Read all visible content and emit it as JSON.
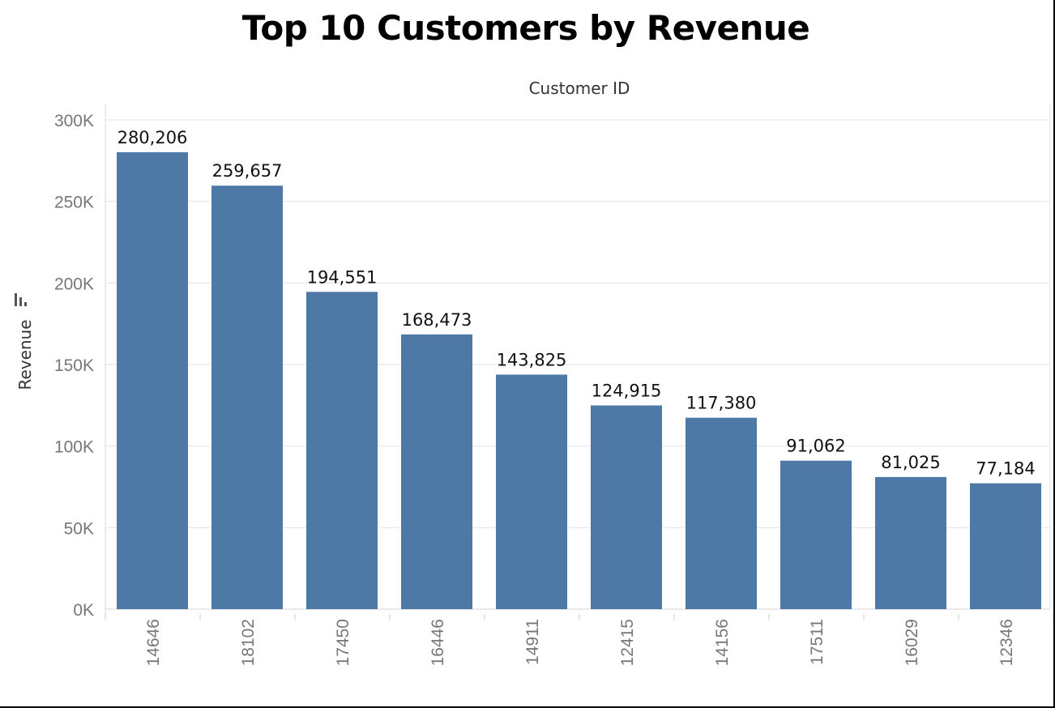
{
  "chart_data": {
    "type": "bar",
    "title": "Top 10 Customers by Revenue",
    "xlabel": "Customer ID",
    "ylabel": "Revenue",
    "categories": [
      "14646",
      "18102",
      "17450",
      "16446",
      "14911",
      "12415",
      "14156",
      "17511",
      "16029",
      "12346"
    ],
    "values": [
      280206,
      259657,
      194551,
      168473,
      143825,
      124915,
      117380,
      91062,
      81025,
      77184
    ],
    "data_labels": [
      "280,206",
      "259,657",
      "194,551",
      "168,473",
      "143,825",
      "124,915",
      "117,380",
      "91,062",
      "81,025",
      "77,184"
    ],
    "ylim": [
      0,
      300000
    ],
    "yticks": [
      0,
      50000,
      100000,
      150000,
      200000,
      250000,
      300000
    ],
    "ytick_labels": [
      "0K",
      "50K",
      "100K",
      "150K",
      "200K",
      "250K",
      "300K"
    ],
    "bar_color": "#4e79a7",
    "grid": true,
    "xlabel_position": "top"
  }
}
